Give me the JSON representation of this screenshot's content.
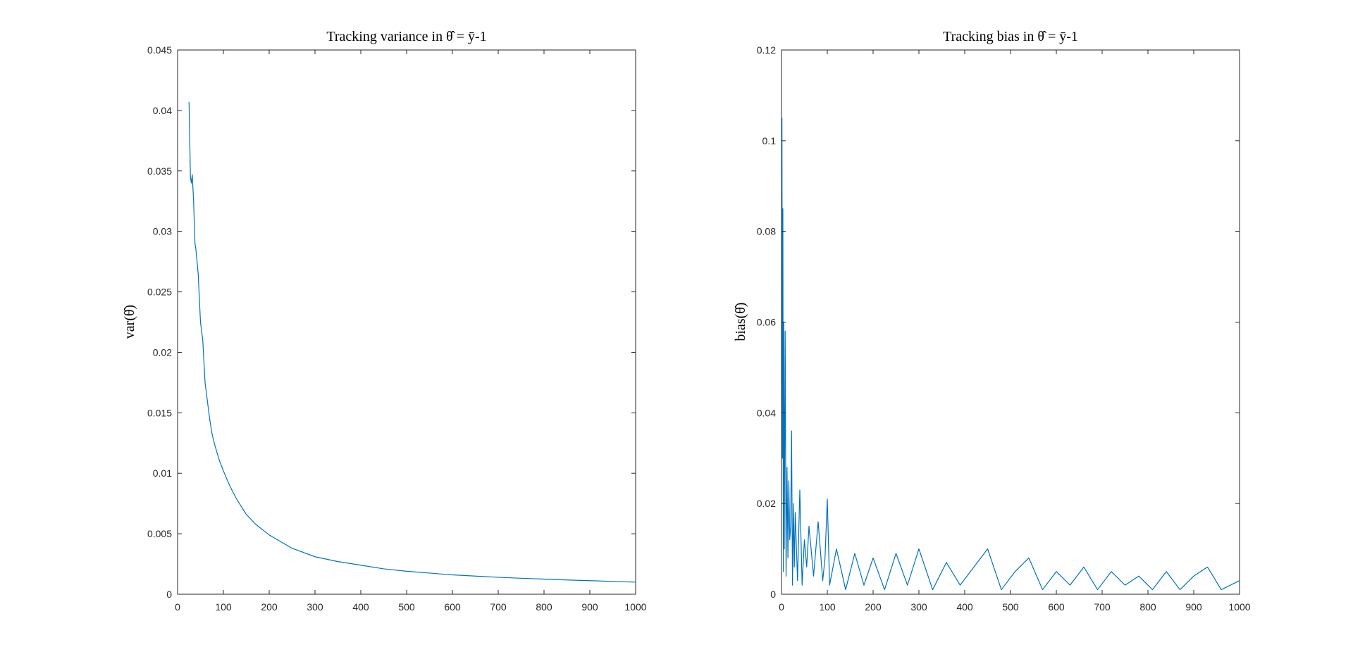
{
  "chart_data": [
    {
      "type": "line",
      "title": "Tracking variance in θ̂ = ȳ-1",
      "xlabel": "",
      "ylabel": "var(θ̂)",
      "xlim": [
        0,
        1000
      ],
      "ylim": [
        0,
        0.045
      ],
      "xticks": [
        "0",
        "100",
        "200",
        "300",
        "400",
        "500",
        "600",
        "700",
        "800",
        "900",
        "1000"
      ],
      "yticks": [
        "0",
        "0.005",
        "0.01",
        "0.015",
        "0.02",
        "0.025",
        "0.03",
        "0.035",
        "0.04",
        "0.045"
      ],
      "grid": false,
      "series": [
        {
          "color": "#0072BD",
          "x": [
            25,
            28,
            30,
            32,
            35,
            38,
            40,
            45,
            50,
            55,
            60,
            65,
            70,
            75,
            80,
            90,
            100,
            110,
            120,
            130,
            140,
            150,
            170,
            200,
            250,
            300,
            350,
            400,
            450,
            500,
            550,
            600,
            650,
            700,
            750,
            800,
            850,
            900,
            950,
            1000
          ],
          "y": [
            0.0407,
            0.0345,
            0.034,
            0.0347,
            0.0325,
            0.029,
            0.0285,
            0.0265,
            0.0225,
            0.021,
            0.0175,
            0.016,
            0.0145,
            0.0133,
            0.0125,
            0.0112,
            0.0102,
            0.0093,
            0.0085,
            0.0078,
            0.0072,
            0.0066,
            0.0058,
            0.0049,
            0.0038,
            0.0031,
            0.0027,
            0.0024,
            0.0021,
            0.0019,
            0.00175,
            0.0016,
            0.0015,
            0.0014,
            0.00132,
            0.00125,
            0.00118,
            0.00112,
            0.00106,
            0.001
          ]
        }
      ]
    },
    {
      "type": "line",
      "title": "Tracking bias in θ̂ = ȳ-1",
      "xlabel": "",
      "ylabel": "bias(θ̂)",
      "xlim": [
        0,
        1000
      ],
      "ylim": [
        0,
        0.12
      ],
      "xticks": [
        "0",
        "100",
        "200",
        "300",
        "400",
        "500",
        "600",
        "700",
        "800",
        "900",
        "1000"
      ],
      "yticks": [
        "0",
        "0.02",
        "0.04",
        "0.06",
        "0.08",
        "0.1",
        "0.12"
      ],
      "grid": false,
      "series": [
        {
          "color": "#0072BD",
          "x": [
            1,
            2,
            3,
            4,
            5,
            6,
            8,
            10,
            12,
            14,
            16,
            18,
            20,
            22,
            24,
            26,
            28,
            30,
            35,
            40,
            45,
            50,
            55,
            60,
            70,
            80,
            90,
            95,
            100,
            105,
            120,
            140,
            160,
            180,
            200,
            225,
            250,
            275,
            300,
            330,
            360,
            390,
            420,
            450,
            480,
            510,
            540,
            570,
            600,
            630,
            660,
            690,
            720,
            750,
            780,
            810,
            840,
            870,
            900,
            930,
            960,
            1000
          ],
          "y": [
            0.105,
            0.03,
            0.085,
            0.005,
            0.06,
            0.01,
            0.058,
            0.004,
            0.028,
            0.008,
            0.025,
            0.012,
            0.015,
            0.036,
            0.002,
            0.02,
            0.006,
            0.018,
            0.003,
            0.023,
            0.002,
            0.012,
            0.006,
            0.015,
            0.004,
            0.016,
            0.003,
            0.008,
            0.021,
            0.002,
            0.01,
            0.001,
            0.009,
            0.002,
            0.008,
            0.001,
            0.009,
            0.002,
            0.01,
            0.001,
            0.007,
            0.002,
            0.006,
            0.01,
            0.001,
            0.005,
            0.008,
            0.001,
            0.005,
            0.002,
            0.006,
            0.001,
            0.005,
            0.002,
            0.004,
            0.001,
            0.005,
            0.001,
            0.004,
            0.006,
            0.001,
            0.003
          ]
        }
      ]
    }
  ]
}
